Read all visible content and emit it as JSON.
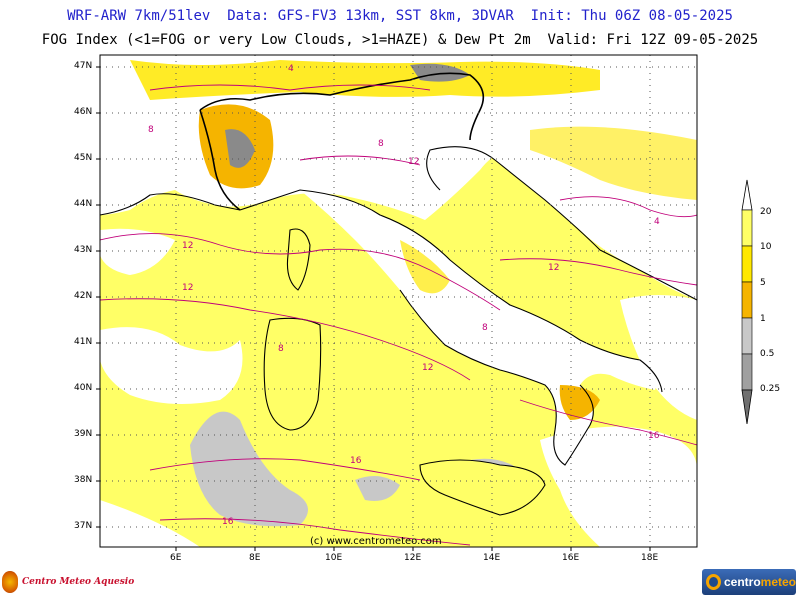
{
  "header": {
    "line1": "WRF-ARW 7km/51lev  Data: GFS-FV3 13km, SST 8km, 3DVAR  Init: Thu 06Z 08-05-2025",
    "line2": "FOG Index (<1=FOG or very Low Clouds, >1=HAZE) & Dew Pt 2m  Valid: Fri 12Z 09-05-2025"
  },
  "map": {
    "lat_labels": [
      "47N",
      "46N",
      "45N",
      "44N",
      "43N",
      "42N",
      "41N",
      "40N",
      "39N",
      "38N",
      "37N"
    ],
    "lon_labels": [
      "6E",
      "8E",
      "10E",
      "12E",
      "14E",
      "16E",
      "18E"
    ],
    "credit": "(c) www.centrometeo.com",
    "contour_labels": [
      "4",
      "8",
      "12",
      "16",
      "12",
      "8",
      "4",
      "12",
      "16",
      "8",
      "12",
      "16",
      "12",
      "8"
    ],
    "colors": {
      "haze_light": "#ffff66",
      "haze_mid": "#ffe800",
      "haze_strong": "#f5b400",
      "fog_light": "#c8c8c8",
      "fog_dark": "#8a8a8a",
      "land_clear": "#ffffff",
      "dew_contour": "#c0007a",
      "coast": "#000000"
    }
  },
  "colorbar": {
    "labels": [
      "20",
      "10",
      "5",
      "1",
      "0.5",
      "0.25"
    ],
    "colors": [
      "#ffff66",
      "#ffe800",
      "#f5b400",
      "#c8c8c8",
      "#a0a0a0",
      "#707070"
    ]
  },
  "logos": {
    "left_text": "Centro Meteo Aquesio",
    "right_text_a": "centro",
    "right_text_b": "meteo"
  }
}
